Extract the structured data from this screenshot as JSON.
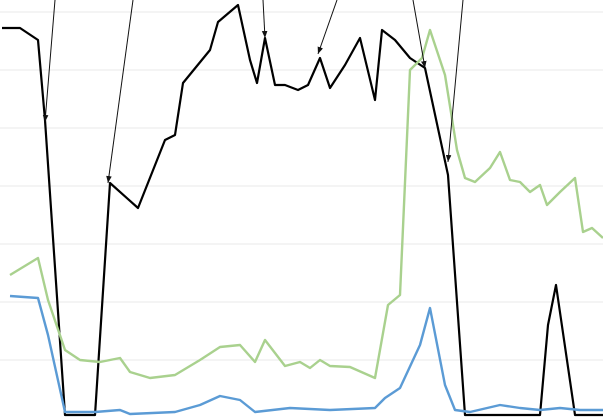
{
  "chart_data": {
    "type": "line",
    "xlim": [
      0,
      603
    ],
    "ylim": [
      -2,
      418
    ],
    "yticks": [
      58,
      116,
      174,
      232,
      290,
      348,
      406
    ],
    "grid": true,
    "series": [
      {
        "color": "#000000",
        "x": [
          2,
          20,
          38,
          45,
          65,
          95,
          110,
          138,
          165,
          175,
          183,
          210,
          218,
          238,
          250,
          257,
          265,
          275,
          285,
          298,
          308,
          320,
          330,
          345,
          360,
          375,
          382,
          395,
          410,
          425,
          448,
          465,
          540,
          548,
          556,
          575,
          603
        ],
        "values": [
          390,
          390,
          378,
          298,
          3,
          3,
          235,
          210,
          278,
          283,
          335,
          368,
          396,
          413,
          358,
          335,
          380,
          333,
          333,
          328,
          333,
          360,
          330,
          353,
          380,
          318,
          388,
          378,
          360,
          350,
          243,
          3,
          3,
          93,
          133,
          3,
          3
        ]
      },
      {
        "color": "#a9d18e",
        "x": [
          10,
          38,
          48,
          65,
          80,
          100,
          120,
          130,
          150,
          175,
          200,
          220,
          240,
          255,
          265,
          285,
          300,
          310,
          320,
          330,
          350,
          375,
          388,
          400,
          410,
          422,
          430,
          445,
          457,
          465,
          475,
          490,
          500,
          510,
          520,
          530,
          540,
          547,
          560,
          575,
          583,
          592,
          603
        ],
        "values": [
          143,
          160,
          118,
          68,
          58,
          56,
          60,
          46,
          40,
          43,
          58,
          71,
          73,
          56,
          78,
          52,
          56,
          50,
          58,
          52,
          51,
          40,
          113,
          123,
          348,
          360,
          388,
          343,
          268,
          240,
          236,
          250,
          266,
          238,
          236,
          226,
          233,
          213,
          226,
          240,
          186,
          190,
          180
        ]
      },
      {
        "color": "#5b9bd5",
        "x": [
          10,
          38,
          48,
          65,
          95,
          120,
          130,
          175,
          200,
          220,
          240,
          255,
          290,
          330,
          375,
          385,
          400,
          420,
          430,
          445,
          455,
          470,
          500,
          520,
          540,
          560,
          580,
          603
        ],
        "values": [
          122,
          120,
          83,
          6,
          6,
          8,
          4,
          6,
          13,
          22,
          18,
          6,
          10,
          8,
          10,
          20,
          30,
          73,
          110,
          33,
          8,
          6,
          13,
          10,
          8,
          10,
          8,
          8
        ]
      }
    ]
  }
}
